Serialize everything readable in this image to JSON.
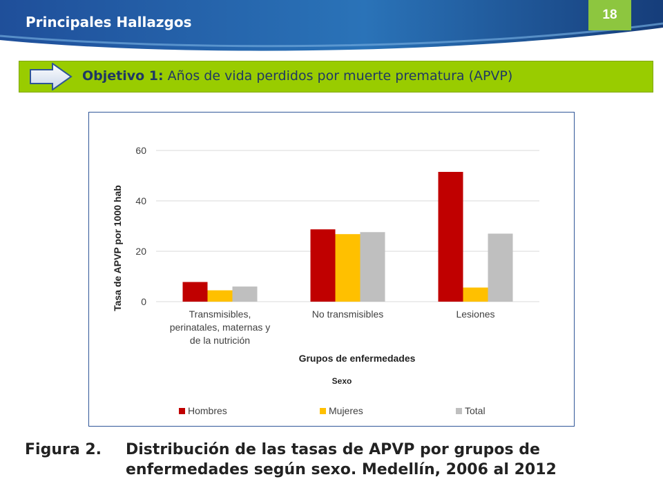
{
  "header": {
    "title": "Principales Hallazgos",
    "slide_number": "18"
  },
  "objective": {
    "label": "Objetivo 1:",
    "text": "Años de vida perdidos por muerte prematura (APVP)"
  },
  "chart_data": {
    "type": "bar",
    "categories": [
      [
        "Transmisibles,",
        "perinatales, maternas y",
        "de la nutrición"
      ],
      [
        "No transmisibles"
      ],
      [
        "Lesiones"
      ]
    ],
    "series": [
      {
        "name": "Hombres",
        "color": "#c00000",
        "values": [
          7.8,
          28.7,
          51.5
        ]
      },
      {
        "name": "Mujeres",
        "color": "#ffc000",
        "values": [
          4.5,
          26.8,
          5.6
        ]
      },
      {
        "name": "Total",
        "color": "#bfbfbf",
        "values": [
          6.0,
          27.6,
          27.0
        ]
      }
    ],
    "ylim": [
      0,
      60
    ],
    "yticks": [
      0,
      20,
      40,
      60
    ],
    "ylabel": "Tasa de APVP por 1000 hab",
    "xlabel": "Grupos de enfermedades",
    "legend_title": "Sexo",
    "legend_position": "bottom",
    "grid": true
  },
  "caption": {
    "label": "Figura 2.",
    "text": "Distribución de las tasas de APVP por grupos de enfermedades según sexo. Medellín, 2006 al 2012"
  }
}
